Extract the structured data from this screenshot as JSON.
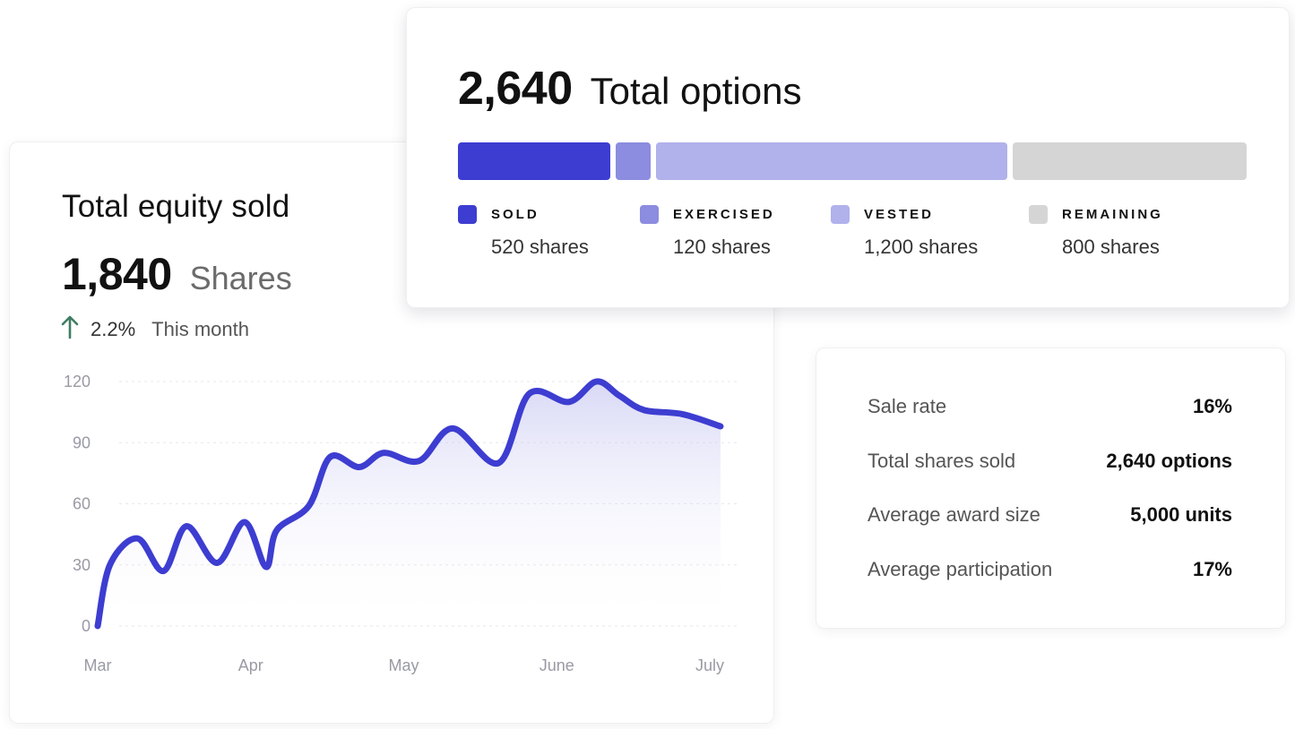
{
  "options_card": {
    "total": "2,640",
    "label": "Total options",
    "segments": [
      {
        "label": "SOLD",
        "value": "520 shares",
        "shares": 520,
        "color": "#3d3dd1"
      },
      {
        "label": "EXERCISED",
        "value": "120 shares",
        "shares": 120,
        "color": "#8c8ce0"
      },
      {
        "label": "VESTED",
        "value": "1,200 shares",
        "shares": 1200,
        "color": "#b1b1ec"
      },
      {
        "label": "REMAINING",
        "value": "800 shares",
        "shares": 800,
        "color": "#d5d5d5"
      }
    ]
  },
  "equity_card": {
    "title": "Total equity sold",
    "value": "1,840",
    "unit": "Shares",
    "growth_pct": "2.2%",
    "growth_period": "This month",
    "growth_icon": "arrow-up-icon",
    "growth_color": "#3e7d62"
  },
  "stats_card": {
    "rows": [
      {
        "label": "Sale rate",
        "value": "16%"
      },
      {
        "label": "Total shares sold",
        "value": "2,640 options"
      },
      {
        "label": "Average award size",
        "value": "5,000 units"
      },
      {
        "label": "Average participation",
        "value": "17%"
      }
    ]
  },
  "chart_data": {
    "type": "area",
    "title": "",
    "xlabel": "",
    "ylabel": "",
    "ylim": [
      0,
      120
    ],
    "yticks": [
      0,
      30,
      60,
      90,
      120
    ],
    "xticks": [
      {
        "label": "Mar",
        "x": 0
      },
      {
        "label": "Apr",
        "x": 1
      },
      {
        "label": "May",
        "x": 2
      },
      {
        "label": "June",
        "x": 3
      },
      {
        "label": "July",
        "x": 4
      }
    ],
    "grid": true,
    "line_color": "#3d3dd1",
    "series": [
      {
        "x": [
          0,
          0.08,
          0.26,
          0.43,
          0.58,
          0.78,
          0.96,
          1.1,
          1.17,
          1.38,
          1.52,
          1.71,
          1.87,
          2.1,
          2.32,
          2.62,
          2.82,
          3.08,
          3.26,
          3.41,
          3.57,
          3.82,
          4.07
        ],
        "y": [
          0,
          30,
          43,
          27,
          49,
          31,
          51,
          29,
          47,
          59,
          83,
          78,
          85,
          81,
          97,
          80,
          114,
          110,
          120,
          113,
          106,
          104,
          98
        ]
      }
    ]
  }
}
